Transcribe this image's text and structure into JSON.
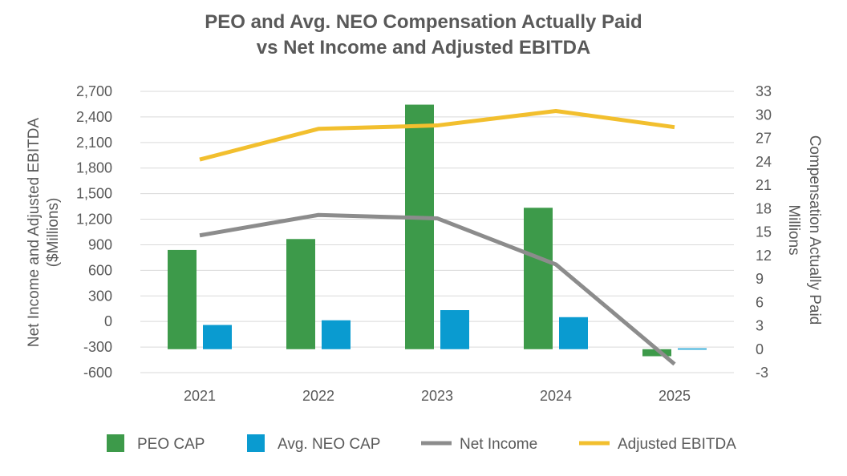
{
  "chart_data": {
    "type": "bar",
    "title_lines": [
      "PEO and Avg. NEO Compensation Actually Paid",
      "vs Net Income and Adjusted EBITDA"
    ],
    "categories": [
      "2021",
      "2022",
      "2023",
      "2024",
      "2025"
    ],
    "left_axis": {
      "label_lines": [
        "Net Income and Adjusted EBITDA",
        "($Millions)"
      ],
      "range": [
        -600,
        2700
      ],
      "ticks": [
        2700,
        2400,
        2100,
        1800,
        1500,
        1200,
        900,
        600,
        300,
        0,
        -300,
        -600
      ],
      "tick_labels": [
        "2,700",
        "2,400",
        "2,100",
        "1,800",
        "1,500",
        "1,200",
        "900",
        "600",
        "300",
        "0",
        "-300",
        "-600"
      ]
    },
    "right_axis": {
      "label_lines": [
        "Compensation Actually Paid",
        "Millions"
      ],
      "range": [
        -3,
        33
      ],
      "ticks": [
        33,
        30,
        27,
        24,
        21,
        18,
        15,
        12,
        9,
        6,
        3,
        0,
        -3
      ],
      "tick_labels": [
        "33",
        "30",
        "27",
        "24",
        "21",
        "18",
        "15",
        "12",
        "9",
        "6",
        "3",
        "0",
        "-3"
      ]
    },
    "bar_series": [
      {
        "name": "PEO CAP",
        "axis": "right",
        "color": "#3d9a4a",
        "values": [
          12.7,
          14.1,
          31.3,
          18.1,
          -0.9
        ]
      },
      {
        "name": "Avg. NEO CAP",
        "axis": "right",
        "color": "#0a9bd0",
        "values": [
          3.1,
          3.7,
          5.0,
          4.1,
          0.1
        ]
      }
    ],
    "line_series": [
      {
        "name": "Net Income",
        "axis": "left",
        "color": "#8c8c8c",
        "values": [
          1010,
          1250,
          1210,
          670,
          -500
        ]
      },
      {
        "name": "Adjusted EBITDA",
        "axis": "left",
        "color": "#f2bf2e",
        "values": [
          1900,
          2260,
          2300,
          2470,
          2280
        ]
      }
    ],
    "legend": [
      "PEO CAP",
      "Avg. NEO CAP",
      "Net Income",
      "Adjusted EBITDA"
    ],
    "legend_position": "bottom",
    "grid": true
  }
}
